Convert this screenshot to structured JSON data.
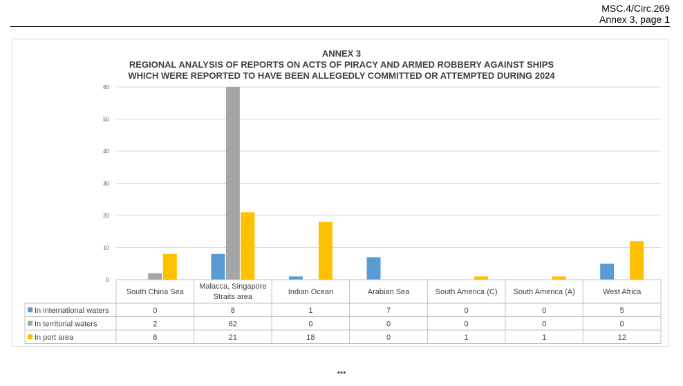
{
  "header": {
    "doc_ref": "MSC.4/Circ.269",
    "page_ref": "Annex 3, page 1"
  },
  "chart_data": {
    "type": "bar",
    "title_lines": [
      "ANNEX 3",
      "REGIONAL ANALYSIS OF REPORTS ON ACTS OF PIRACY AND ARMED ROBBERY AGAINST SHIPS",
      "WHICH WERE REPORTED TO HAVE BEEN ALLEGEDLY COMMITTED OR ATTEMPTED DURING 2024"
    ],
    "categories": [
      [
        "South China Sea"
      ],
      [
        "Malacca, Singapore",
        "Straits area"
      ],
      [
        "Indian Ocean"
      ],
      [
        "Arabian Sea"
      ],
      [
        "South America (C)"
      ],
      [
        "South America (A)"
      ],
      [
        "West Africa"
      ]
    ],
    "series": [
      {
        "name": "In international waters",
        "color": "#5B9BD5",
        "values": [
          0,
          8,
          1,
          7,
          0,
          0,
          5
        ]
      },
      {
        "name": "In territorial waters",
        "color": "#A5A5A5",
        "values": [
          2,
          62,
          0,
          0,
          0,
          0,
          0
        ]
      },
      {
        "name": "In port area",
        "color": "#FFC000",
        "values": [
          8,
          21,
          18,
          0,
          1,
          1,
          12
        ]
      }
    ],
    "ylim": [
      0,
      60
    ],
    "yticks": [
      0,
      10,
      20,
      30,
      40,
      50,
      60
    ],
    "grid": true,
    "legend": "data table below chart"
  },
  "footer": {
    "mark": "***"
  }
}
